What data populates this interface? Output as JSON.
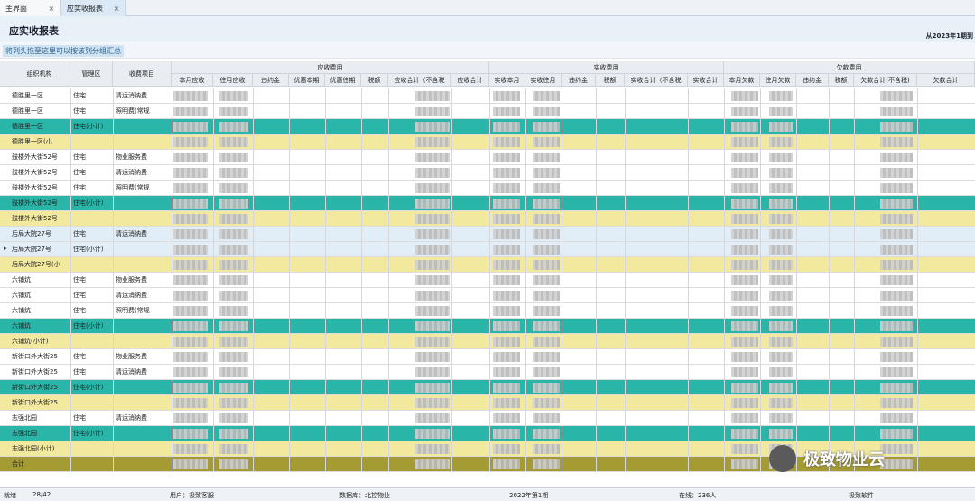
{
  "tabs": [
    {
      "label": "主界面",
      "close": "×"
    },
    {
      "label": "应实收报表",
      "close": "×"
    }
  ],
  "page": {
    "title": "应实收报表",
    "date_range": "从2023年1期到",
    "group_hint": "将列头拖至这里可以按该列分组汇总"
  },
  "header": {
    "groups": [
      "应收费用",
      "实收费用",
      "欠款费用"
    ],
    "columns": [
      "组织机构",
      "管理区",
      "收费项目",
      "本月应收",
      "往月应收",
      "违约金",
      "优惠本期",
      "优惠往期",
      "税额",
      "应收合计（不含税",
      "应收合计",
      "实收本月",
      "实收往月",
      "违约金",
      "税额",
      "实收合计（不含税",
      "实收合计",
      "本月欠款",
      "往月欠款",
      "违约金",
      "税额",
      "欠款合计(不含税)",
      "欠款合计"
    ]
  },
  "rows": [
    {
      "org": "德胜里一区",
      "zone": "住宅",
      "item": "清运消纳费",
      "style": "normal"
    },
    {
      "org": "德胜里一区",
      "zone": "住宅",
      "item": "照明费(常规",
      "style": "normal"
    },
    {
      "org": "德胜里一区",
      "zone": "住宅(小计)",
      "item": "",
      "style": "teal"
    },
    {
      "org": "德胜里一区(小",
      "zone": "",
      "item": "",
      "style": "yellow"
    },
    {
      "org": "鼓楼外大街52号",
      "zone": "住宅",
      "item": "物业服务费",
      "style": "normal"
    },
    {
      "org": "鼓楼外大街52号",
      "zone": "住宅",
      "item": "清运消纳费",
      "style": "normal"
    },
    {
      "org": "鼓楼外大街52号",
      "zone": "住宅",
      "item": "照明费(常规",
      "style": "normal"
    },
    {
      "org": "鼓楼外大街52号",
      "zone": "住宅(小计)",
      "item": "",
      "style": "teal"
    },
    {
      "org": "鼓楼外大街52号",
      "zone": "",
      "item": "",
      "style": "yellow"
    },
    {
      "org": "后局大院27号",
      "zone": "住宅",
      "item": "清运消纳费",
      "style": "lightblue"
    },
    {
      "org": "后局大院27号",
      "zone": "住宅(小计)",
      "item": "",
      "style": "lightblue"
    },
    {
      "org": "后局大院27号(小",
      "zone": "",
      "item": "",
      "style": "yellow"
    },
    {
      "org": "六铺炕",
      "zone": "住宅",
      "item": "物业服务费",
      "style": "normal"
    },
    {
      "org": "六铺炕",
      "zone": "住宅",
      "item": "清运消纳费",
      "style": "normal"
    },
    {
      "org": "六铺炕",
      "zone": "住宅",
      "item": "照明费(常规",
      "style": "normal"
    },
    {
      "org": "六铺炕",
      "zone": "住宅(小计)",
      "item": "",
      "style": "teal"
    },
    {
      "org": "六铺炕(小计)",
      "zone": "",
      "item": "",
      "style": "yellow"
    },
    {
      "org": "新街口外大街25",
      "zone": "住宅",
      "item": "物业服务费",
      "style": "normal"
    },
    {
      "org": "新街口外大街25",
      "zone": "住宅",
      "item": "清运消纳费",
      "style": "normal"
    },
    {
      "org": "新街口外大街25",
      "zone": "住宅(小计)",
      "item": "",
      "style": "teal"
    },
    {
      "org": "新街口外大街25",
      "zone": "",
      "item": "",
      "style": "yellow"
    },
    {
      "org": "志强北园",
      "zone": "住宅",
      "item": "清运消纳费",
      "style": "normal"
    },
    {
      "org": "志强北园",
      "zone": "住宅(小计)",
      "item": "",
      "style": "teal"
    },
    {
      "org": "志强北园(小计)",
      "zone": "",
      "item": "",
      "style": "yellow"
    },
    {
      "org": "合计",
      "zone": "",
      "item": "",
      "style": "total"
    }
  ],
  "status": {
    "state": "就绪",
    "count": "28/42",
    "user": "用户：极致客服",
    "database": "数据库：北控物业",
    "period": "2022年第1期",
    "online": "在线：236人",
    "software": "极致软件"
  },
  "watermark": {
    "text": "极致物业云"
  }
}
